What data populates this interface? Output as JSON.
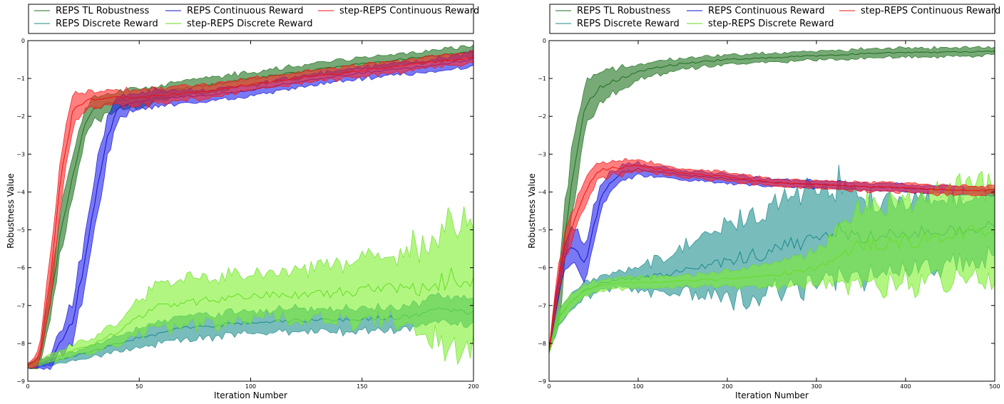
{
  "chart_data": [
    {
      "type": "area",
      "title": "",
      "xlabel": "Iteration Number",
      "ylabel": "Robustness Value",
      "xlim": [
        0,
        200
      ],
      "ylim": [
        -9,
        0
      ],
      "x_ticks": [
        0,
        50,
        100,
        150,
        200
      ],
      "y_ticks": [
        0,
        -1,
        -2,
        -3,
        -4,
        -5,
        -6,
        -7,
        -8,
        -9
      ],
      "legend_position": "top",
      "series": [
        {
          "name": "REPS TL Robustness",
          "color": "#1f6f1f",
          "fill": "#2e7d2e",
          "alpha": 0.65,
          "x": [
            0,
            5,
            10,
            15,
            20,
            25,
            30,
            40,
            50,
            60,
            80,
            100,
            120,
            150,
            175,
            200
          ],
          "mean": [
            -8.6,
            -8.5,
            -7.0,
            -5.0,
            -3.6,
            -2.3,
            -1.8,
            -1.6,
            -1.5,
            -1.35,
            -1.2,
            -1.0,
            -0.85,
            -0.6,
            -0.45,
            -0.3
          ],
          "halfwidth": [
            0.05,
            0.15,
            0.4,
            0.55,
            0.55,
            0.4,
            0.3,
            0.25,
            0.25,
            0.2,
            0.2,
            0.18,
            0.18,
            0.16,
            0.15,
            0.15
          ]
        },
        {
          "name": "REPS Discrete Reward",
          "color": "#1a8a8a",
          "fill": "#209090",
          "alpha": 0.6,
          "x": [
            0,
            10,
            20,
            30,
            40,
            50,
            70,
            90,
            110,
            130,
            150,
            170,
            185,
            200
          ],
          "mean": [
            -8.6,
            -8.5,
            -8.35,
            -8.2,
            -8.0,
            -7.85,
            -7.6,
            -7.5,
            -7.4,
            -7.4,
            -7.35,
            -7.3,
            -7.1,
            -7.2
          ],
          "halfwidth": [
            0.05,
            0.08,
            0.12,
            0.15,
            0.2,
            0.25,
            0.3,
            0.3,
            0.3,
            0.3,
            0.3,
            0.3,
            0.35,
            0.35
          ]
        },
        {
          "name": "REPS Continuous Reward",
          "color": "#1010cc",
          "fill": "#2020ee",
          "alpha": 0.6,
          "x": [
            0,
            10,
            20,
            25,
            30,
            35,
            40,
            50,
            60,
            80,
            100,
            120,
            150,
            175,
            200
          ],
          "mean": [
            -8.6,
            -8.5,
            -7.4,
            -6.0,
            -4.2,
            -2.7,
            -1.8,
            -1.6,
            -1.5,
            -1.45,
            -1.3,
            -1.1,
            -0.85,
            -0.7,
            -0.5
          ],
          "halfwidth": [
            0.05,
            0.15,
            0.5,
            0.7,
            0.7,
            0.55,
            0.3,
            0.2,
            0.2,
            0.15,
            0.15,
            0.15,
            0.15,
            0.15,
            0.2
          ]
        },
        {
          "name": "step-REPS Discrete Reward",
          "color": "#66dd22",
          "fill": "#7ef02e",
          "alpha": 0.6,
          "x": [
            0,
            10,
            20,
            30,
            40,
            50,
            60,
            75,
            90,
            110,
            130,
            150,
            165,
            180,
            190,
            200
          ],
          "mean": [
            -8.6,
            -8.4,
            -8.2,
            -8.0,
            -7.7,
            -7.3,
            -7.0,
            -6.9,
            -6.8,
            -6.7,
            -6.7,
            -6.6,
            -6.5,
            -6.6,
            -6.2,
            -6.4
          ],
          "halfwidth": [
            0.05,
            0.1,
            0.15,
            0.2,
            0.3,
            0.45,
            0.6,
            0.6,
            0.6,
            0.6,
            0.7,
            0.8,
            0.9,
            1.3,
            1.7,
            1.6
          ]
        },
        {
          "name": "step-REPS Continuous Reward",
          "color": "#ee1111",
          "fill": "#ff2a2a",
          "alpha": 0.6,
          "x": [
            0,
            5,
            10,
            15,
            20,
            25,
            30,
            40,
            50,
            60,
            80,
            100,
            120,
            150,
            175,
            200
          ],
          "mean": [
            -8.6,
            -8.4,
            -6.3,
            -3.6,
            -1.9,
            -1.6,
            -1.55,
            -1.5,
            -1.5,
            -1.45,
            -1.35,
            -1.15,
            -1.0,
            -0.8,
            -0.6,
            -0.45
          ],
          "halfwidth": [
            0.05,
            0.2,
            0.6,
            0.6,
            0.45,
            0.25,
            0.2,
            0.2,
            0.2,
            0.2,
            0.18,
            0.16,
            0.15,
            0.15,
            0.15,
            0.15
          ]
        }
      ]
    },
    {
      "type": "area",
      "title": "",
      "xlabel": "Iteration Number",
      "ylabel": "Robustness Value",
      "xlim": [
        0,
        500
      ],
      "ylim": [
        -9,
        0
      ],
      "x_ticks": [
        0,
        100,
        200,
        300,
        400,
        500
      ],
      "y_ticks": [
        0,
        -1,
        -2,
        -3,
        -4,
        -5,
        -6,
        -7,
        -8,
        -9
      ],
      "legend_position": "top",
      "series": [
        {
          "name": "REPS TL Robustness",
          "color": "#1f6f1f",
          "fill": "#2e7d2e",
          "alpha": 0.65,
          "x": [
            0,
            10,
            20,
            30,
            40,
            50,
            60,
            80,
            100,
            150,
            200,
            250,
            300,
            350,
            400,
            450,
            500
          ],
          "mean": [
            -8.2,
            -6.8,
            -4.8,
            -3.0,
            -1.9,
            -1.4,
            -1.2,
            -1.0,
            -0.8,
            -0.6,
            -0.5,
            -0.45,
            -0.4,
            -0.35,
            -0.32,
            -0.3,
            -0.28
          ],
          "halfwidth": [
            0.05,
            0.6,
            0.8,
            0.8,
            0.6,
            0.5,
            0.4,
            0.3,
            0.2,
            0.15,
            0.12,
            0.12,
            0.12,
            0.12,
            0.12,
            0.12,
            0.1
          ]
        },
        {
          "name": "REPS Discrete Reward",
          "color": "#1a8a8a",
          "fill": "#209090",
          "alpha": 0.6,
          "x": [
            0,
            10,
            20,
            40,
            60,
            80,
            100,
            150,
            200,
            250,
            300,
            330,
            350,
            400,
            450,
            500
          ],
          "mean": [
            -8.2,
            -7.4,
            -7.0,
            -6.6,
            -6.4,
            -6.3,
            -6.3,
            -6.1,
            -5.8,
            -5.6,
            -5.2,
            -5.0,
            -5.2,
            -5.1,
            -5.0,
            -4.9
          ],
          "halfwidth": [
            0.05,
            0.2,
            0.2,
            0.2,
            0.2,
            0.2,
            0.3,
            0.6,
            1.0,
            1.2,
            1.3,
            1.2,
            1.0,
            0.9,
            0.9,
            0.9
          ]
        },
        {
          "name": "REPS Continuous Reward",
          "color": "#1010cc",
          "fill": "#2020ee",
          "alpha": 0.6,
          "x": [
            0,
            10,
            20,
            30,
            40,
            50,
            60,
            80,
            100,
            150,
            200,
            250,
            300,
            350,
            400,
            450,
            500
          ],
          "mean": [
            -8.2,
            -6.5,
            -5.5,
            -5.6,
            -5.9,
            -4.9,
            -4.0,
            -3.5,
            -3.4,
            -3.55,
            -3.65,
            -3.75,
            -3.8,
            -3.85,
            -3.9,
            -3.95,
            -4.0
          ],
          "halfwidth": [
            0.05,
            0.3,
            0.4,
            0.5,
            0.5,
            0.45,
            0.3,
            0.2,
            0.15,
            0.12,
            0.12,
            0.1,
            0.1,
            0.1,
            0.1,
            0.1,
            0.1
          ]
        },
        {
          "name": "step-REPS Discrete Reward",
          "color": "#66dd22",
          "fill": "#7ef02e",
          "alpha": 0.6,
          "x": [
            0,
            10,
            20,
            40,
            60,
            80,
            100,
            150,
            200,
            250,
            300,
            330,
            350,
            400,
            450,
            500
          ],
          "mean": [
            -8.2,
            -7.4,
            -7.0,
            -6.6,
            -6.45,
            -6.4,
            -6.4,
            -6.35,
            -6.3,
            -6.2,
            -6.0,
            -5.6,
            -5.4,
            -5.3,
            -5.2,
            -5.0
          ],
          "halfwidth": [
            0.05,
            0.2,
            0.2,
            0.15,
            0.15,
            0.15,
            0.15,
            0.15,
            0.2,
            0.3,
            0.4,
            0.8,
            1.0,
            1.1,
            1.2,
            1.3
          ]
        },
        {
          "name": "step-REPS Continuous Reward",
          "color": "#ee1111",
          "fill": "#ff2a2a",
          "alpha": 0.6,
          "x": [
            0,
            10,
            20,
            30,
            40,
            50,
            60,
            80,
            100,
            150,
            200,
            250,
            300,
            350,
            400,
            450,
            500
          ],
          "mean": [
            -8.2,
            -6.3,
            -5.2,
            -4.7,
            -4.0,
            -3.6,
            -3.4,
            -3.35,
            -3.3,
            -3.5,
            -3.6,
            -3.75,
            -3.8,
            -3.85,
            -3.9,
            -3.95,
            -3.95
          ],
          "halfwidth": [
            0.05,
            0.4,
            0.4,
            0.35,
            0.35,
            0.25,
            0.2,
            0.2,
            0.15,
            0.12,
            0.12,
            0.1,
            0.1,
            0.12,
            0.12,
            0.12,
            0.12
          ]
        }
      ]
    }
  ]
}
